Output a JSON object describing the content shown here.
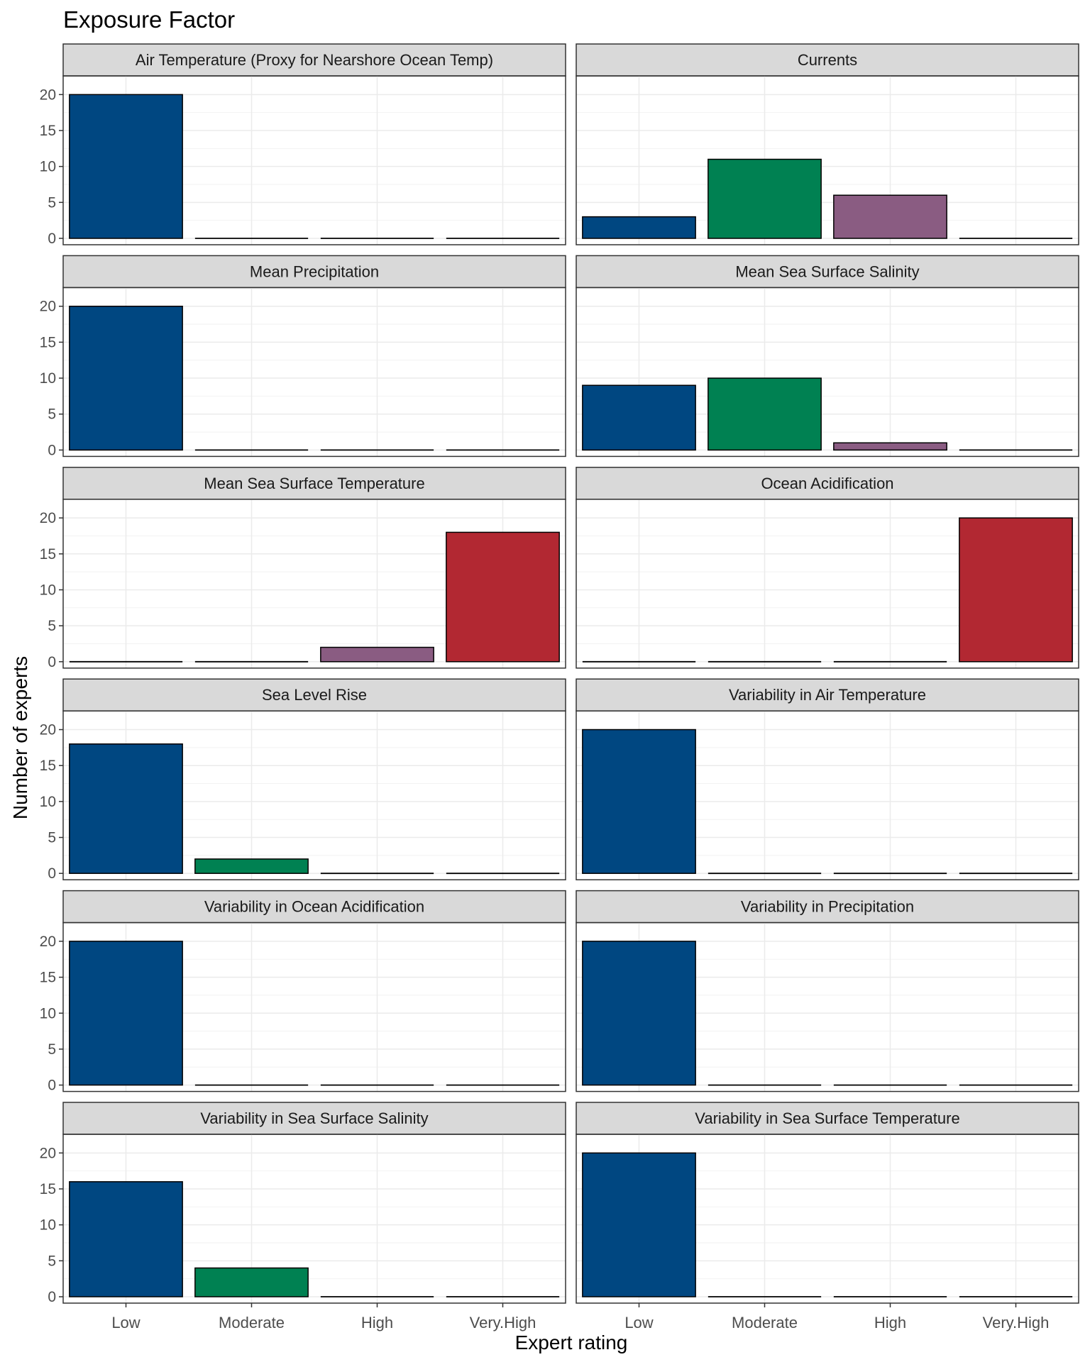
{
  "chart_data": {
    "type": "bar",
    "title": "Exposure Factor",
    "xlabel": "Expert rating",
    "ylabel": "Number of experts",
    "categories": [
      "Low",
      "Moderate",
      "High",
      "Very.High"
    ],
    "ylim": [
      0,
      20
    ],
    "yticks": [
      0,
      5,
      10,
      15,
      20
    ],
    "grid": true,
    "bar_colors": [
      "#004781",
      "#008152",
      "#8a5c82",
      "#b22832"
    ],
    "panel_header_color": "#d9d9d9",
    "panels": [
      {
        "name": "Air Temperature (Proxy for Nearshore Ocean Temp)",
        "values": [
          20,
          0,
          0,
          0
        ]
      },
      {
        "name": "Currents",
        "values": [
          3,
          11,
          6,
          0
        ]
      },
      {
        "name": "Mean Precipitation",
        "values": [
          20,
          0,
          0,
          0
        ]
      },
      {
        "name": "Mean Sea Surface Salinity",
        "values": [
          9,
          10,
          1,
          0
        ]
      },
      {
        "name": "Mean Sea Surface Temperature",
        "values": [
          0,
          0,
          2,
          18
        ]
      },
      {
        "name": "Ocean Acidification",
        "values": [
          0,
          0,
          0,
          20
        ]
      },
      {
        "name": "Sea Level Rise",
        "values": [
          18,
          2,
          0,
          0
        ]
      },
      {
        "name": "Variability in Air Temperature",
        "values": [
          20,
          0,
          0,
          0
        ]
      },
      {
        "name": "Variability in Ocean Acidification",
        "values": [
          20,
          0,
          0,
          0
        ]
      },
      {
        "name": "Variability in Precipitation",
        "values": [
          20,
          0,
          0,
          0
        ]
      },
      {
        "name": "Variability in Sea Surface Salinity",
        "values": [
          16,
          4,
          0,
          0
        ]
      },
      {
        "name": "Variability in Sea Surface Temperature",
        "values": [
          20,
          0,
          0,
          0
        ]
      }
    ]
  }
}
